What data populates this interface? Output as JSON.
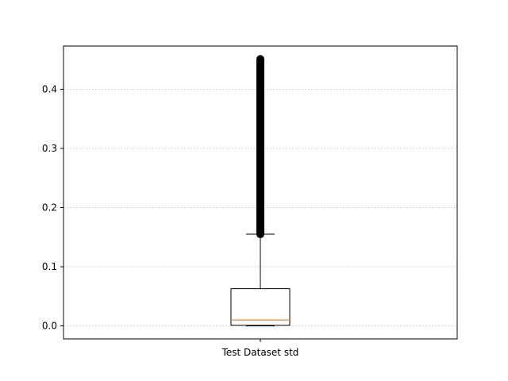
{
  "chart_data": {
    "type": "box",
    "title": "",
    "xlabel": "",
    "ylabel": "",
    "categories": [
      "Test Dataset std"
    ],
    "ylim": [
      -0.022,
      0.473
    ],
    "yticks": [
      0.0,
      0.1,
      0.2,
      0.3,
      0.4
    ],
    "ytick_labels": [
      "0.0",
      "0.1",
      "0.2",
      "0.3",
      "0.4"
    ],
    "grid": {
      "axis": "y",
      "style": "dotted",
      "color": "#cccccc"
    },
    "boxes": [
      {
        "category": "Test Dataset std",
        "whisker_low": 0.0,
        "q1": 0.001,
        "median": 0.01,
        "q3": 0.063,
        "whisker_high": 0.155,
        "outliers_range": [
          0.155,
          0.451
        ],
        "median_color": "#ff7f0e",
        "box_color": "#000000"
      }
    ]
  }
}
